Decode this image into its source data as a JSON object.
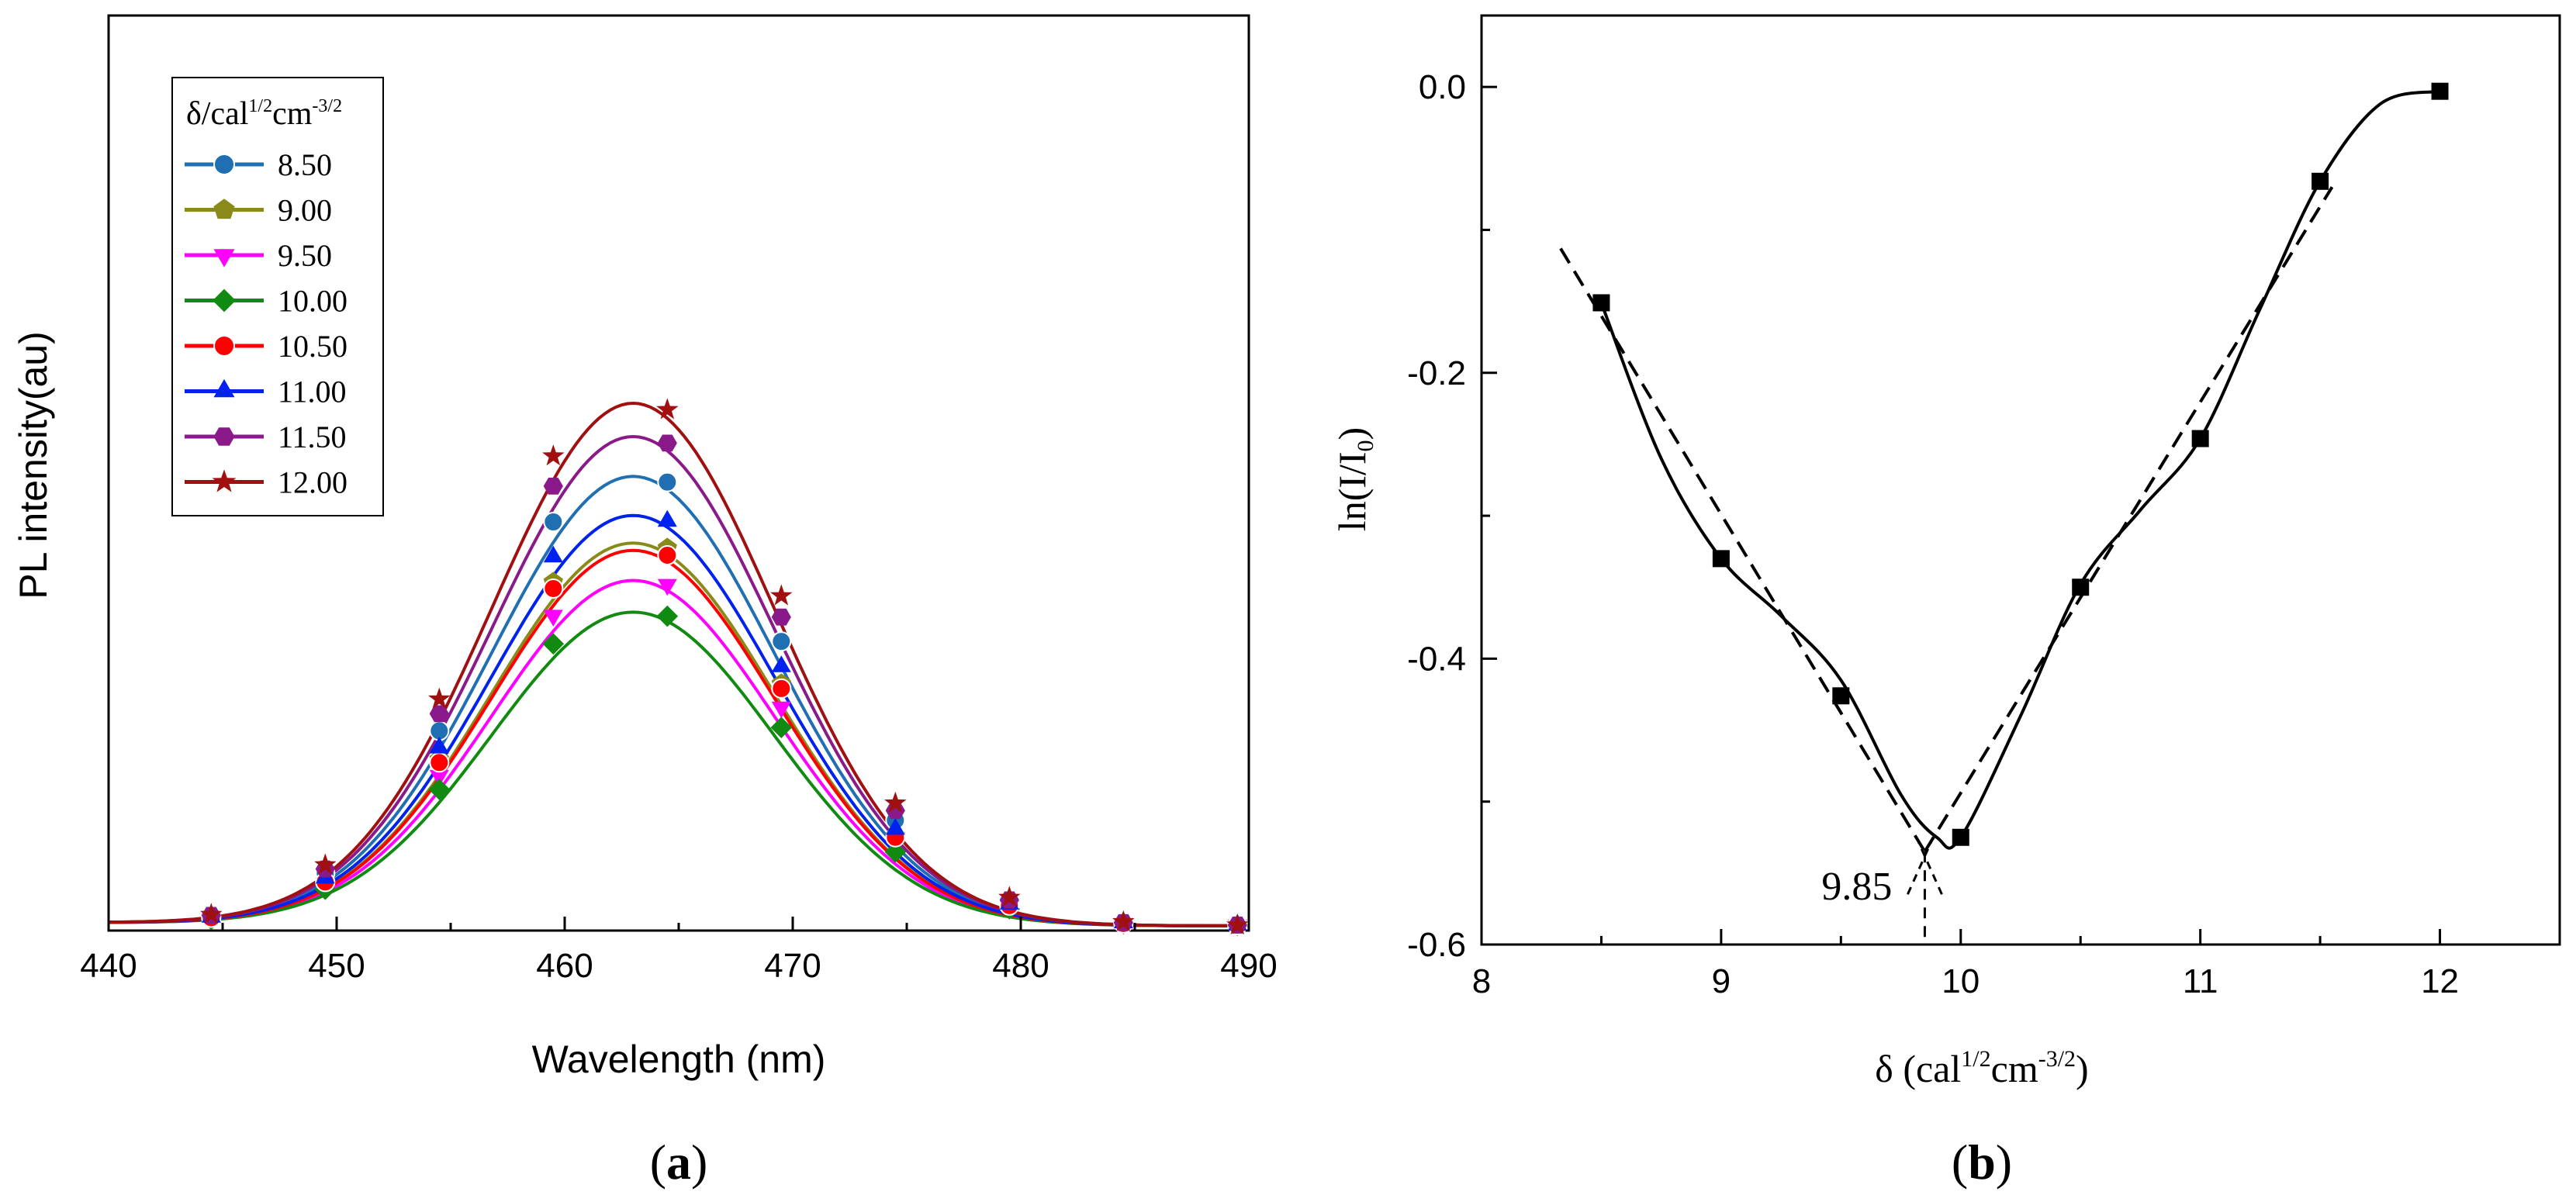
{
  "chart_data": [
    {
      "type": "line",
      "panel": "a",
      "caption_letter": "a",
      "caption_open": "(",
      "caption_close": ")",
      "title": "",
      "xlabel": "Wavelength (nm)",
      "ylabel": "PL intensity(au)",
      "xlim": [
        440,
        490
      ],
      "ylim": [
        0,
        1
      ],
      "xticks": [
        440,
        450,
        460,
        470,
        480,
        490
      ],
      "xtick_labels": [
        "440",
        "450",
        "460",
        "470",
        "480",
        "490"
      ],
      "yticks": [],
      "grid": false,
      "legend_position": "top-left",
      "legend_title_base": "δ/cal",
      "legend_title_sup1": "1/2",
      "legend_title_mid": "cm",
      "legend_title_sup2": "-3/2",
      "marker_x": [
        444.5,
        449.5,
        454.5,
        459.5,
        464.5,
        469.5,
        474.5,
        479.5,
        484.5,
        489.5
      ],
      "series": [
        {
          "name": "8.50",
          "color": "#1f6fb2",
          "marker": "circle",
          "peak": 0.553,
          "values": [
            0.012,
            0.065,
            0.24,
            0.497,
            0.546,
            0.35,
            0.13,
            0.03,
            0.004,
            0.001
          ]
        },
        {
          "name": "9.00",
          "color": "#8a8a1a",
          "marker": "pentagon",
          "peak": 0.471,
          "values": [
            0.01,
            0.055,
            0.205,
            0.423,
            0.465,
            0.298,
            0.111,
            0.026,
            0.003,
            0.001
          ]
        },
        {
          "name": "9.50",
          "color": "#ff00ff",
          "marker": "triangle-down",
          "peak": 0.425,
          "values": [
            0.009,
            0.05,
            0.185,
            0.382,
            0.42,
            0.269,
            0.1,
            0.023,
            0.003,
            0.001
          ]
        },
        {
          "name": "10.00",
          "color": "#118a11",
          "marker": "diamond",
          "peak": 0.386,
          "values": [
            0.008,
            0.045,
            0.168,
            0.347,
            0.381,
            0.244,
            0.091,
            0.021,
            0.003,
            0.001
          ]
        },
        {
          "name": "10.50",
          "color": "#ff0000",
          "marker": "circle",
          "peak": 0.462,
          "values": [
            0.01,
            0.054,
            0.201,
            0.415,
            0.456,
            0.292,
            0.109,
            0.025,
            0.003,
            0.001
          ]
        },
        {
          "name": "11.00",
          "color": "#0022ee",
          "marker": "triangle-up",
          "peak": 0.505,
          "values": [
            0.011,
            0.059,
            0.219,
            0.454,
            0.498,
            0.319,
            0.119,
            0.027,
            0.004,
            0.001
          ]
        },
        {
          "name": "11.50",
          "color": "#8a1a8a",
          "marker": "hexagon",
          "peak": 0.602,
          "values": [
            0.013,
            0.07,
            0.261,
            0.541,
            0.594,
            0.38,
            0.142,
            0.032,
            0.004,
            0.001
          ]
        },
        {
          "name": "12.00",
          "color": "#a01010",
          "marker": "star",
          "peak": 0.643,
          "values": [
            0.014,
            0.075,
            0.279,
            0.578,
            0.635,
            0.406,
            0.151,
            0.035,
            0.005,
            0.001
          ]
        }
      ]
    },
    {
      "type": "line",
      "panel": "b",
      "caption_letter": "b",
      "caption_open": "(",
      "caption_close": ")",
      "title": "",
      "xlabel_base": "δ (cal",
      "xlabel_sup1": "1/2",
      "xlabel_mid": "cm",
      "xlabel_sup2": "-3/2",
      "xlabel_end": ")",
      "ylabel_base": "ln(I/I",
      "ylabel_sub": "0",
      "ylabel_end": ")",
      "xlim": [
        8,
        12.5
      ],
      "ylim": [
        -0.6,
        0.05
      ],
      "xticks": [
        8,
        9,
        10,
        11,
        12
      ],
      "xtick_labels": [
        "8",
        "9",
        "10",
        "11",
        "12"
      ],
      "yticks": [
        -0.6,
        -0.4,
        -0.2,
        0.0
      ],
      "ytick_labels": [
        "-0.6",
        "-0.4",
        "-0.2",
        "0.0"
      ],
      "grid": false,
      "points": {
        "x": [
          8.5,
          9.0,
          9.5,
          10.0,
          10.5,
          11.0,
          11.5,
          12.0
        ],
        "y": [
          -0.151,
          -0.33,
          -0.426,
          -0.525,
          -0.35,
          -0.246,
          -0.066,
          -0.003
        ]
      },
      "smooth_curve": {
        "x": [
          8.5,
          8.75,
          9.0,
          9.25,
          9.5,
          9.75,
          9.9,
          10.0,
          10.25,
          10.5,
          10.75,
          11.0,
          11.25,
          11.5,
          11.75,
          12.0
        ],
        "y": [
          -0.151,
          -0.26,
          -0.33,
          -0.37,
          -0.415,
          -0.495,
          -0.525,
          -0.525,
          -0.44,
          -0.348,
          -0.296,
          -0.246,
          -0.155,
          -0.066,
          -0.012,
          -0.003
        ]
      },
      "fit_left": {
        "x": [
          8.33,
          9.85
        ],
        "y": [
          -0.113,
          -0.535
        ]
      },
      "fit_right": {
        "x": [
          9.85,
          11.55
        ],
        "y": [
          -0.535,
          -0.07
        ]
      },
      "annotation": {
        "text": "9.85",
        "x": 9.85,
        "y": -0.535
      }
    }
  ]
}
